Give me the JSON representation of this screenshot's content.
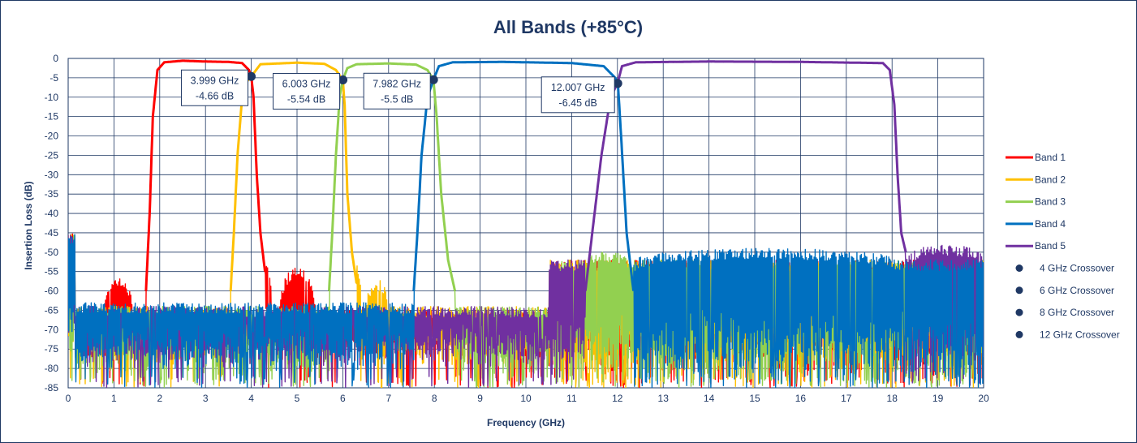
{
  "chart_data": {
    "type": "line",
    "title": "All Bands (+85°C)",
    "xlabel": "Frequency (GHz)",
    "ylabel": "Insertion Loss (dB)",
    "xlim": [
      0,
      20
    ],
    "ylim": [
      -85,
      0
    ],
    "x_ticks": [
      0,
      1,
      2,
      3,
      4,
      5,
      6,
      7,
      8,
      9,
      10,
      11,
      12,
      13,
      14,
      15,
      16,
      17,
      18,
      19,
      20
    ],
    "y_ticks": [
      0,
      -5,
      -10,
      -15,
      -20,
      -25,
      -30,
      -35,
      -40,
      -45,
      -50,
      -55,
      -60,
      -65,
      -70,
      -75,
      -80,
      -85
    ],
    "grid": true,
    "legend_position": "right",
    "series": [
      {
        "name": "Band 1",
        "color": "#ff0000",
        "passband": {
          "x": [
            1.7,
            1.78,
            1.85,
            1.95,
            2.1,
            2.5,
            3.0,
            3.5,
            3.8,
            3.95,
            4.0,
            4.05,
            4.12,
            4.2,
            4.3
          ],
          "y": [
            -60,
            -40,
            -15,
            -3,
            -1,
            -0.6,
            -0.8,
            -0.9,
            -1.2,
            -3,
            -4.66,
            -10,
            -30,
            -45,
            -55
          ]
        },
        "lobes": [
          [
            0.8,
            1.4,
            -56
          ],
          [
            4.25,
            4.45,
            -52
          ],
          [
            4.6,
            5.4,
            -54
          ]
        ],
        "floor": [
          -65,
          -71
        ],
        "xrange": [
          0,
          20
        ]
      },
      {
        "name": "Band 2",
        "color": "#ffc000",
        "passband": {
          "x": [
            3.55,
            3.62,
            3.7,
            3.8,
            3.9,
            4.0,
            4.2,
            5.0,
            5.6,
            5.85,
            6.0,
            6.04,
            6.1,
            6.2,
            6.3
          ],
          "y": [
            -60,
            -45,
            -25,
            -10,
            -6,
            -4.66,
            -1.5,
            -1.1,
            -1.4,
            -3,
            -5.54,
            -12,
            -35,
            -50,
            -58
          ]
        },
        "lobes": [
          [
            6.15,
            6.4,
            -52
          ],
          [
            6.5,
            7.0,
            -57
          ]
        ],
        "floor": [
          -64,
          -72
        ],
        "xrange": [
          0,
          20
        ]
      },
      {
        "name": "Band 3",
        "color": "#92d050",
        "passband": {
          "x": [
            5.7,
            5.77,
            5.85,
            5.93,
            6.0,
            6.1,
            6.3,
            7.0,
            7.6,
            7.85,
            7.98,
            8.05,
            8.15,
            8.3,
            8.45
          ],
          "y": [
            -60,
            -45,
            -25,
            -10,
            -5.54,
            -2.5,
            -1.5,
            -1.3,
            -1.6,
            -3,
            -5.5,
            -15,
            -35,
            -52,
            -60
          ]
        },
        "lobes": [
          [
            11.35,
            12.2,
            -50
          ]
        ],
        "floor": [
          -64,
          -76
        ],
        "xrange": [
          0,
          20
        ]
      },
      {
        "name": "Band 4",
        "color": "#0070c0",
        "passband": {
          "x": [
            7.55,
            7.63,
            7.72,
            7.85,
            7.98,
            8.1,
            8.4,
            9.5,
            11.0,
            11.7,
            11.95,
            12.01,
            12.08,
            12.2,
            12.35
          ],
          "y": [
            -60,
            -45,
            -25,
            -10,
            -5.5,
            -2,
            -1,
            -0.9,
            -1.2,
            -2,
            -5,
            -6.45,
            -20,
            -45,
            -60
          ]
        },
        "lobes": [
          [
            12.4,
            18.1,
            -49
          ]
        ],
        "floor": [
          -63,
          -73
        ],
        "xrange": [
          0,
          20
        ]
      },
      {
        "name": "Band 5",
        "color": "#7030a0",
        "passband": {
          "x": [
            11.3,
            11.45,
            11.65,
            11.85,
            12.0,
            12.1,
            12.4,
            14.0,
            16.0,
            17.8,
            17.95,
            18.05,
            18.12,
            18.2,
            18.3
          ],
          "y": [
            -60,
            -45,
            -25,
            -10,
            -6.45,
            -2,
            -1,
            -0.8,
            -0.9,
            -1.2,
            -3,
            -12,
            -30,
            -45,
            -50
          ]
        },
        "lobes": [
          [
            18.3,
            20,
            -48
          ]
        ],
        "floor": [
          -64,
          -72
        ],
        "xrange": [
          0,
          20
        ]
      },
      {
        "name": "4 GHz Crossover",
        "color": "#1f3864",
        "marker": "circle",
        "x": [
          3.999
        ],
        "y": [
          -4.66
        ]
      },
      {
        "name": "6 GHz Crossover",
        "color": "#1f3864",
        "marker": "circle",
        "x": [
          6.003
        ],
        "y": [
          -5.54
        ]
      },
      {
        "name": "8 GHz Crossover",
        "color": "#1f3864",
        "marker": "circle",
        "x": [
          7.982
        ],
        "y": [
          -5.5
        ]
      },
      {
        "name": "12 GHz Crossover",
        "color": "#1f3864",
        "marker": "circle",
        "x": [
          12.007
        ],
        "y": [
          -6.45
        ]
      }
    ],
    "annotations": [
      {
        "x": 3.999,
        "y": -4.66,
        "line1": "3.999 GHz",
        "line2": "-4.66 dB",
        "side": "left"
      },
      {
        "x": 6.003,
        "y": -5.54,
        "line1": "6.003 GHz",
        "line2": "-5.54 dB",
        "side": "left"
      },
      {
        "x": 7.982,
        "y": -5.5,
        "line1": "7.982 GHz",
        "line2": "-5.5 dB",
        "side": "left"
      },
      {
        "x": 12.007,
        "y": -6.45,
        "line1": "12.007 GHz",
        "line2": "-6.45 dB",
        "side": "left"
      }
    ]
  }
}
